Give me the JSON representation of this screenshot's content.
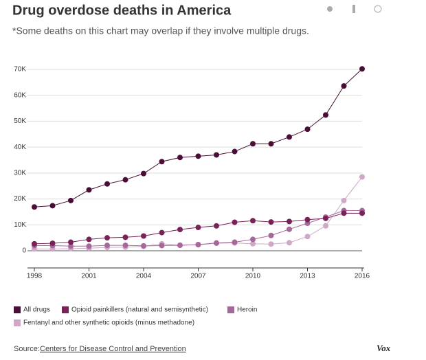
{
  "chart_data": {
    "type": "line",
    "title": "Drug overdose deaths in America",
    "subtitle": "*Some deaths on this chart may overlap if they involve multiple drugs.",
    "x": [
      1998,
      1999,
      2000,
      2001,
      2002,
      2003,
      2004,
      2005,
      2006,
      2007,
      2008,
      2009,
      2010,
      2011,
      2012,
      2013,
      2014,
      2015,
      2016
    ],
    "xlim": [
      1998,
      2016
    ],
    "xticks": [
      1998,
      2001,
      2004,
      2007,
      2010,
      2013,
      2016
    ],
    "ylim": [
      0,
      70000
    ],
    "yticks": [
      0,
      {
        "value": 10000,
        "label": "10K"
      },
      {
        "value": 20000,
        "label": "20K"
      },
      {
        "value": 30000,
        "label": "30K"
      },
      {
        "value": 40000,
        "label": "40K"
      },
      {
        "value": 50000,
        "label": "50K"
      },
      {
        "value": 60000,
        "label": "60K"
      },
      {
        "value": 70000,
        "label": "70K"
      }
    ],
    "grid": true,
    "series": [
      {
        "name": "All drugs",
        "color": "#4a0d36",
        "values": [
          16900,
          17400,
          19400,
          23500,
          25800,
          27400,
          29800,
          34400,
          36000,
          36500,
          37000,
          38300,
          41300,
          41300,
          43900,
          46900,
          52400,
          63600,
          70200
        ]
      },
      {
        "name": "Opioid painkillers (natural and semisynthetic)",
        "color": "#7b2159",
        "values": [
          2700,
          2900,
          3300,
          4400,
          5000,
          5200,
          5700,
          7000,
          8200,
          9000,
          9600,
          11000,
          11600,
          11100,
          11300,
          12000,
          12500,
          14500,
          14500
        ]
      },
      {
        "name": "Heroin",
        "color": "#a8679a",
        "values": [
          2000,
          2000,
          1800,
          1800,
          2100,
          2100,
          1900,
          2000,
          2100,
          2400,
          3000,
          3300,
          4400,
          5900,
          8300,
          10600,
          13000,
          15500,
          15500
        ]
      },
      {
        "name": "Fentanyl and other synthetic opioids (minus methadone)",
        "color": "#d1a7c8",
        "values": [
          700,
          700,
          800,
          1000,
          1300,
          1400,
          1700,
          2700,
          2200,
          2300,
          2900,
          3000,
          2700,
          2600,
          3100,
          5500,
          9600,
          19400,
          28500
        ]
      }
    ],
    "source_label": "Source:",
    "source": "Centers for Disease Control and Prevention",
    "brand": "Vox"
  }
}
